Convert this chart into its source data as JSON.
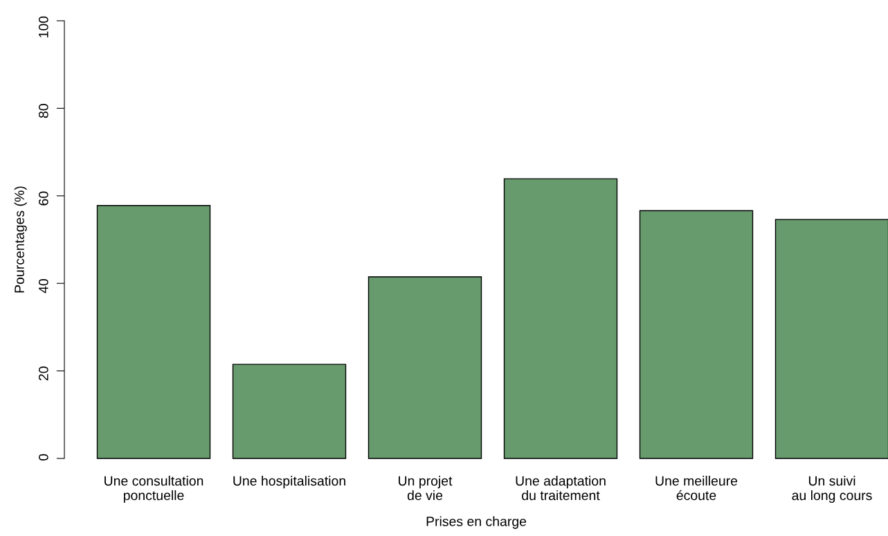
{
  "chart_data": {
    "type": "bar",
    "xlabel": "Prises en charge",
    "ylabel": "Pourcentages (%)",
    "categories": [
      "Une consultation\nponctuelle",
      "Une hospitalisation",
      "Un projet\nde vie",
      "Une adaptation\ndu traitement",
      "Une meilleure\nécoute",
      "Un suivi\nau long cours"
    ],
    "values": [
      57.8,
      21.5,
      41.5,
      63.9,
      56.6,
      54.6
    ],
    "color": "#679b6e",
    "ylim": [
      0,
      100
    ],
    "yticks": [
      0,
      20,
      40,
      60,
      80,
      100
    ]
  }
}
